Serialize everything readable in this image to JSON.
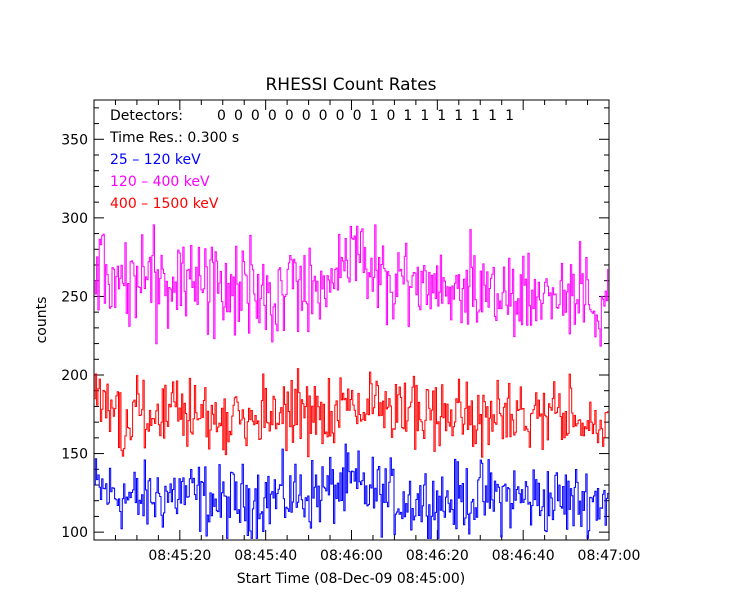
{
  "chart_data": {
    "type": "line",
    "title": "RHESSI Count Rates",
    "xlabel": "Start Time (08-Dec-09 08:45:00)",
    "ylabel": "counts",
    "x_range_seconds": [
      0,
      120
    ],
    "ylim": [
      95,
      375
    ],
    "x_ticks": [
      {
        "t": 20,
        "label": "08:45:20"
      },
      {
        "t": 40,
        "label": "08:45:40"
      },
      {
        "t": 60,
        "label": "08:46:00"
      },
      {
        "t": 80,
        "label": "08:46:20"
      },
      {
        "t": 100,
        "label": "08:46:40"
      },
      {
        "t": 120,
        "label": "08:47:00"
      }
    ],
    "y_ticks": [
      100,
      150,
      200,
      250,
      300,
      350
    ],
    "annotations": {
      "detectors_label": "Detectors:",
      "detectors_value": "0 0 0 0 0 0 0 0 0 1 0 1 1 1 1 1 1 1",
      "time_res": "Time Res.: 0.300 s"
    },
    "series": [
      {
        "name": "25 - 120 keV",
        "legend_text": " 25 – 120 keV",
        "color": "#0000ff",
        "mean": 122,
        "amplitude": 14,
        "t": [
          0,
          10,
          20,
          30,
          40,
          50,
          60,
          70,
          80,
          90,
          100,
          110,
          119
        ],
        "values": [
          128,
          120,
          125,
          118,
          122,
          124,
          130,
          121,
          119,
          123,
          122,
          120,
          121
        ]
      },
      {
        "name": "120 - 400 keV",
        "legend_text": "120 – 400 keV",
        "color": "#ff00ff",
        "mean": 255,
        "amplitude": 18,
        "t": [
          0,
          10,
          20,
          30,
          40,
          50,
          60,
          70,
          80,
          90,
          100,
          110,
          119
        ],
        "values": [
          268,
          258,
          262,
          255,
          252,
          256,
          275,
          260,
          254,
          257,
          252,
          250,
          250
        ]
      },
      {
        "name": "400 - 1500 keV",
        "legend_text": "400 – 1500 keV",
        "color": "#ff0000",
        "mean": 175,
        "amplitude": 14,
        "t": [
          0,
          10,
          20,
          30,
          40,
          50,
          60,
          70,
          80,
          90,
          100,
          110,
          119
        ],
        "values": [
          185,
          172,
          176,
          170,
          174,
          176,
          182,
          175,
          173,
          176,
          175,
          173,
          165
        ]
      }
    ]
  }
}
